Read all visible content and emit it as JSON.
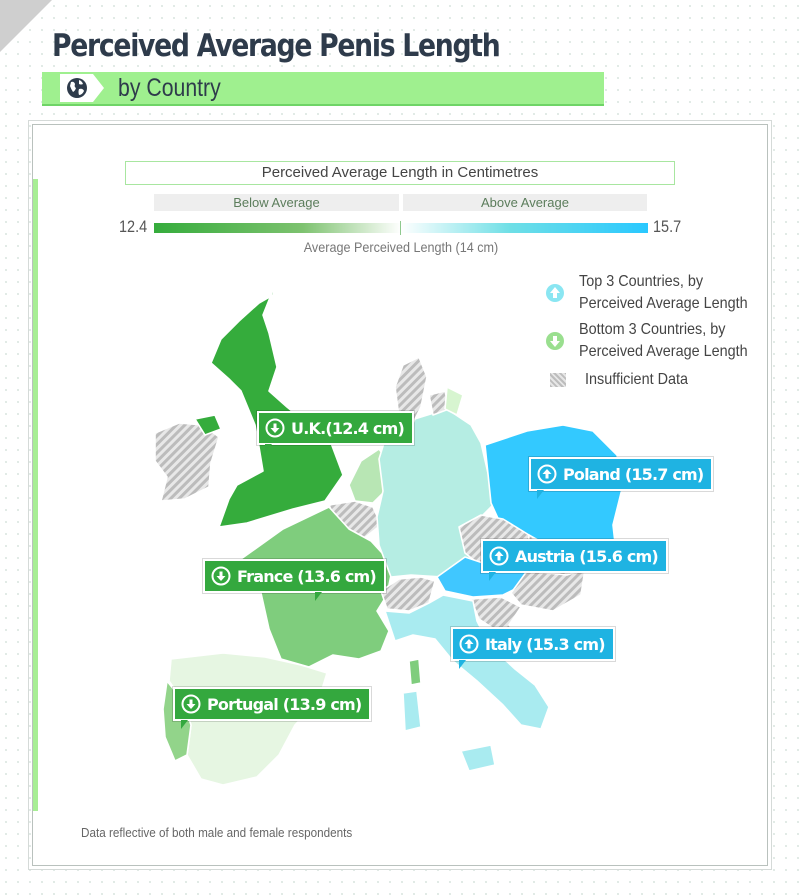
{
  "header": {
    "title": "Perceived Average Penis Length",
    "subtitle": "by Country"
  },
  "legend": {
    "title": "Perceived Average Length in Centimetres",
    "below_label": "Below Average",
    "above_label": "Above Average",
    "scale_min": "12.4",
    "scale_max": "15.7",
    "average_caption": "Average Perceived Length (14 cm)",
    "top3_line1": "Top 3 Countries, by",
    "top3_line2": "Perceived Average Length",
    "bottom3_line1": "Bottom 3 Countries, by",
    "bottom3_line2": "Perceived Average Length",
    "insufficient": "Insufficient Data"
  },
  "colors": {
    "lowest": "#35ac3c",
    "highest": "#29c8ff",
    "insufficient": "#cccccc",
    "accent": "#9ff08f",
    "title": "#2e3b4b"
  },
  "callouts": {
    "uk": "U.K.(12.4 cm)",
    "france": "France (13.6 cm)",
    "portugal": "Portugal (13.9 cm)",
    "poland": "Poland (15.7 cm)",
    "austria": "Austria (15.6 cm)",
    "italy": "Italy (15.3 cm)"
  },
  "map_data": [
    {
      "country": "U.K.",
      "value_cm": 12.4,
      "rank": "bottom-3"
    },
    {
      "country": "France",
      "value_cm": 13.6,
      "rank": "bottom-3"
    },
    {
      "country": "Portugal",
      "value_cm": 13.9,
      "rank": "bottom-3"
    },
    {
      "country": "Poland",
      "value_cm": 15.7,
      "rank": "top-3"
    },
    {
      "country": "Austria",
      "value_cm": 15.6,
      "rank": "top-3"
    },
    {
      "country": "Italy",
      "value_cm": 15.3,
      "rank": "top-3"
    }
  ],
  "footnote": "Data reflective of both male and female respondents"
}
